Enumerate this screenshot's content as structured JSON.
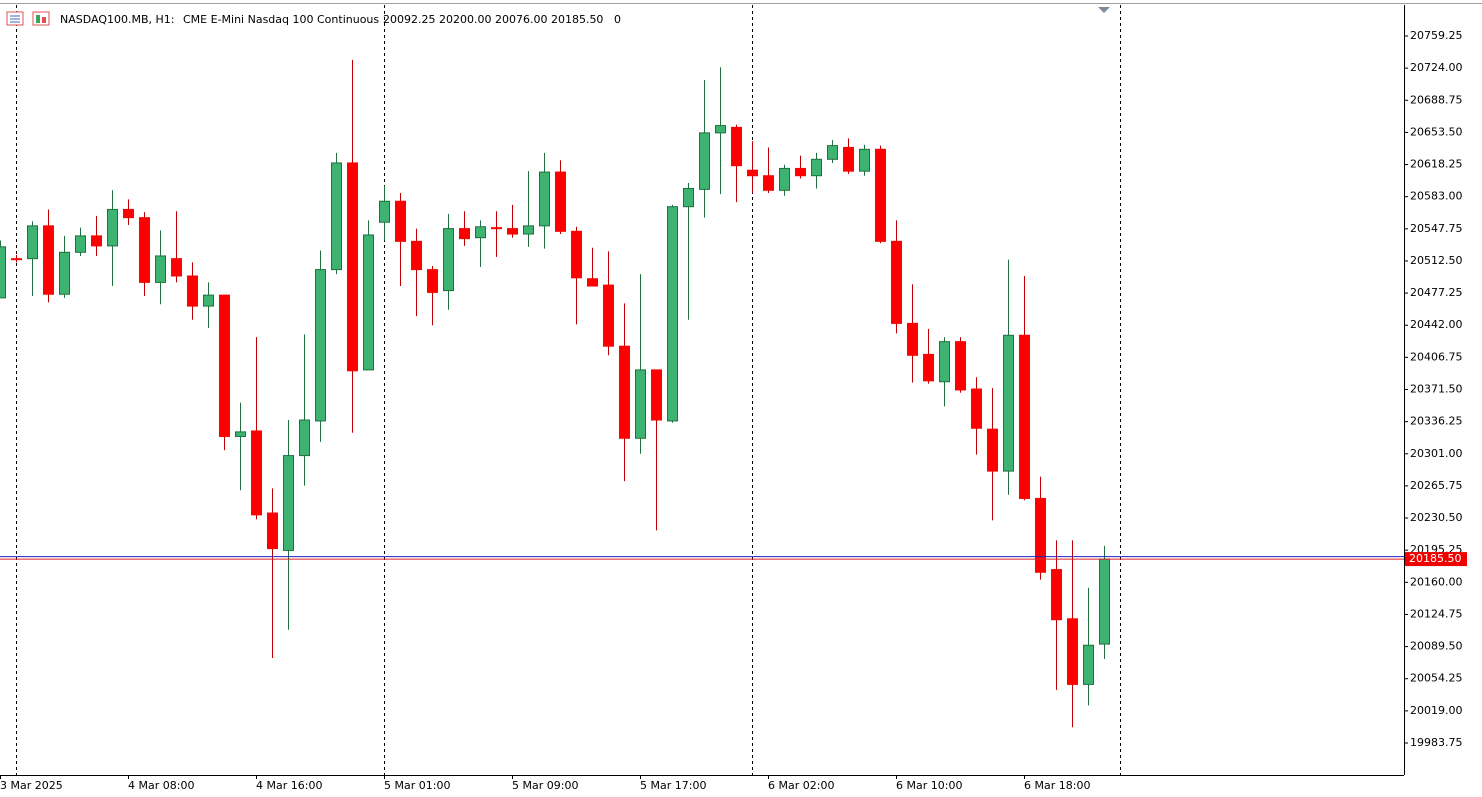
{
  "chart_data": {
    "type": "candlestick",
    "symbol": "NASDAQ100.MB, H1:",
    "description": "CME E-Mini Nasdaq 100 Continuous",
    "ohlc_text": "20092.25 20200.00 20076.00 20185.50",
    "volume_text": "0",
    "categories": [
      "3 Mar 2025",
      null,
      null,
      null,
      null,
      null,
      null,
      null,
      "4 Mar 08:00",
      null,
      null,
      null,
      null,
      null,
      null,
      null,
      "4 Mar 16:00",
      null,
      null,
      null,
      null,
      null,
      null,
      null,
      "5 Mar 01:00",
      null,
      null,
      null,
      null,
      null,
      null,
      null,
      "5 Mar 09:00",
      null,
      null,
      null,
      null,
      null,
      null,
      null,
      "5 Mar 17:00",
      null,
      null,
      null,
      null,
      null,
      null,
      null,
      "6 Mar 02:00",
      null,
      null,
      null,
      null,
      null,
      null,
      null,
      "6 Mar 10:00",
      null,
      null,
      null,
      null,
      null,
      null,
      null,
      "6 Mar 18:00",
      null,
      null,
      null,
      null,
      null
    ],
    "open": [
      20472,
      20515,
      20515,
      20551,
      20476,
      20522,
      20540,
      20529,
      20569,
      20560,
      20489,
      20515,
      20496,
      20463,
      20475,
      20320,
      20326,
      20236,
      20195,
      20299,
      20337,
      20503,
      20620,
      20393,
      20555,
      20578,
      20534,
      20503,
      20480,
      20548,
      20538,
      20549,
      20548,
      20542,
      20551,
      20610,
      20545,
      20493,
      20486,
      20419,
      20318,
      20393,
      20337,
      20572,
      20591,
      20653,
      20659,
      20612,
      20606,
      20590,
      20614,
      20606,
      20624,
      20637,
      20611,
      20635,
      20534,
      20444,
      20410,
      20380,
      20424,
      20372,
      20328,
      20282,
      20431,
      20252,
      20174,
      20120,
      20048,
      20092.25
    ],
    "high": [
      20535,
      20519,
      20556,
      20569,
      20540,
      20549,
      20562,
      20590,
      20580,
      20566,
      20546,
      20567,
      20511,
      20489,
      20475,
      20357,
      20429,
      20263,
      20338,
      20432,
      20524,
      20631,
      20733,
      20557,
      20595,
      20587,
      20548,
      20507,
      20564,
      20567,
      20557,
      20567,
      20574,
      20611,
      20631,
      20623,
      20550,
      20527,
      20523,
      20466,
      20498,
      20393,
      20574,
      20598,
      20711,
      20725,
      20662,
      20644,
      20637,
      20618,
      20628,
      20631,
      20645,
      20647,
      20640,
      20639,
      20557,
      20487,
      20438,
      20429,
      20429,
      20385,
      20373,
      20514,
      20496,
      20276,
      20206,
      20206,
      20154,
      20200
    ],
    "low": [
      20472,
      20511,
      20474,
      20467,
      20472,
      20518,
      20518,
      20485,
      20552,
      20474,
      20465,
      20489,
      20448,
      20439,
      20305,
      20261,
      20229,
      20077,
      20108,
      20266,
      20314,
      20498,
      20324,
      20393,
      20535,
      20485,
      20452,
      20442,
      20459,
      20529,
      20506,
      20517,
      20538,
      20528,
      20526,
      20542,
      20443,
      20485,
      20409,
      20271,
      20301,
      20217,
      20335,
      20448,
      20560,
      20586,
      20577,
      20587,
      20587,
      20584,
      20603,
      20592,
      20620,
      20608,
      20606,
      20532,
      20433,
      20379,
      20378,
      20353,
      20368,
      20300,
      20228,
      20256,
      20250,
      20163,
      20042,
      20001,
      20025,
      20076
    ],
    "close": [
      20528,
      20514,
      20551,
      20476,
      20522,
      20540,
      20529,
      20569,
      20560,
      20489,
      20518,
      20496,
      20463,
      20475,
      20320,
      20325,
      20234,
      20197,
      20299,
      20338,
      20503,
      20620,
      20392,
      20541,
      20578,
      20534,
      20503,
      20478,
      20548,
      20537,
      20550,
      20548,
      20542,
      20551,
      20610,
      20545,
      20494,
      20485,
      20419,
      20318,
      20393,
      20338,
      20572,
      20592,
      20653,
      20661,
      20617,
      20606,
      20590,
      20614,
      20606,
      20624,
      20639,
      20611,
      20635,
      20534,
      20444,
      20409,
      20381,
      20424,
      20371,
      20329,
      20282,
      20431,
      20252,
      20171,
      20119,
      20048,
      20091,
      20185.5
    ],
    "up_color": "#3cb371",
    "down_color": "#ff0000",
    "last_price": {
      "value": 20185.5,
      "label": "20185.50"
    },
    "ylim": [
      19948.65,
      20793.25
    ],
    "yticks": [
      {
        "value": 20759.25,
        "label": "20759.25"
      },
      {
        "value": 20724,
        "label": "20724.00"
      },
      {
        "value": 20688.75,
        "label": "20688.75"
      },
      {
        "value": 20653.5,
        "label": "20653.50"
      },
      {
        "value": 20618.25,
        "label": "20618.25"
      },
      {
        "value": 20583,
        "label": "20583.00"
      },
      {
        "value": 20547.75,
        "label": "20547.75"
      },
      {
        "value": 20512.5,
        "label": "20512.50"
      },
      {
        "value": 20477.25,
        "label": "20477.25"
      },
      {
        "value": 20442,
        "label": "20442.00"
      },
      {
        "value": 20406.75,
        "label": "20406.75"
      },
      {
        "value": 20371.5,
        "label": "20371.50"
      },
      {
        "value": 20336.25,
        "label": "20336.25"
      },
      {
        "value": 20301,
        "label": "20301.00"
      },
      {
        "value": 20265.75,
        "label": "20265.75"
      },
      {
        "value": 20230.5,
        "label": "20230.50"
      },
      {
        "value": 20195.25,
        "label": "20195.25"
      },
      {
        "value": 20160,
        "label": "20160.00"
      },
      {
        "value": 20124.75,
        "label": "20124.75"
      },
      {
        "value": 20089.5,
        "label": "20089.50"
      },
      {
        "value": 20054.25,
        "label": "20054.25"
      },
      {
        "value": 20019,
        "label": "20019.00"
      },
      {
        "value": 19983.75,
        "label": "19983.75"
      }
    ]
  }
}
